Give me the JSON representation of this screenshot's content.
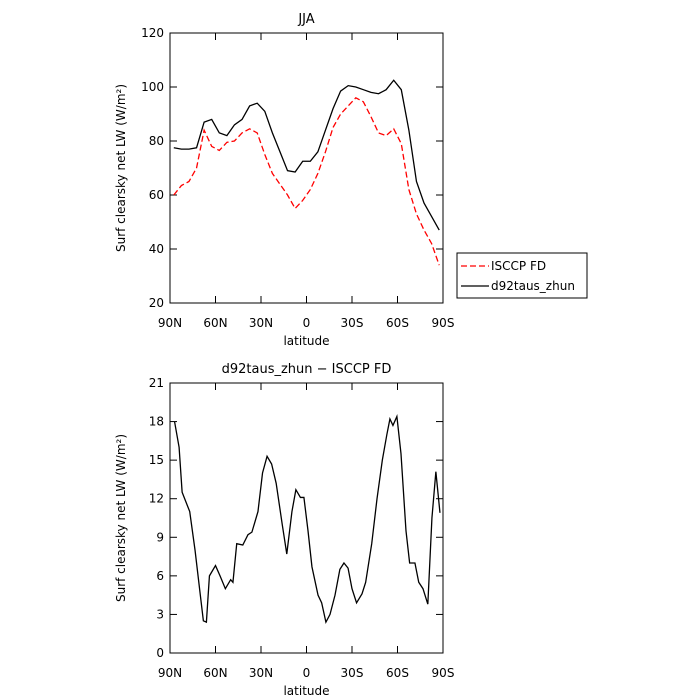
{
  "chart_data": [
    {
      "type": "line",
      "title": "JJA",
      "xlabel": "latitude",
      "ylabel": "Surf clearsky net LW (W/m²)",
      "xlim": [
        90,
        -90
      ],
      "xticks": [
        {
          "value": 90,
          "label": "90N"
        },
        {
          "value": 60,
          "label": "60N"
        },
        {
          "value": 30,
          "label": "30N"
        },
        0,
        {
          "value": -30,
          "label": "30S"
        },
        {
          "value": -60,
          "label": "60S"
        },
        {
          "value": -90,
          "label": "90S"
        }
      ],
      "ylim": [
        20,
        120
      ],
      "yticks": [
        20,
        40,
        60,
        80,
        100,
        120
      ],
      "legend": "right",
      "x": [
        87.5,
        82.5,
        77.5,
        72.5,
        67.5,
        62.5,
        57.5,
        52.5,
        47.5,
        42.5,
        37.5,
        32.5,
        27.5,
        22.5,
        17.5,
        12.5,
        7.5,
        2.5,
        -2.5,
        -7.5,
        -12.5,
        -17.5,
        -22.5,
        -27.5,
        -32.5,
        -37.5,
        -42.5,
        -47.5,
        -52.5,
        -57.5,
        -62.5,
        -67.5,
        -72.5,
        -77.5,
        -82.5,
        -87.5
      ],
      "series": [
        {
          "name": "ISCCP FD",
          "color": "#ff0000",
          "linestyle": "dashed",
          "values": [
            60,
            63.5,
            65,
            70,
            84,
            78,
            76.5,
            79.5,
            80,
            83,
            84.5,
            83,
            75,
            68,
            64,
            60,
            55,
            58,
            62,
            68,
            76,
            85,
            90,
            93,
            96,
            94.5,
            89,
            83,
            82,
            84.5,
            79,
            62,
            53,
            47,
            42,
            34
          ]
        },
        {
          "name": "d92taus_zhun",
          "color": "#000000",
          "linestyle": "solid",
          "values": [
            77.5,
            77,
            77,
            77.5,
            87,
            88,
            83,
            82,
            86,
            88,
            93,
            94,
            91,
            83,
            76,
            69,
            68.5,
            72.5,
            72.5,
            76,
            84,
            92,
            98.5,
            100.5,
            100,
            99,
            98,
            97.5,
            99,
            102.5,
            99,
            84,
            65,
            57,
            52,
            47
          ]
        }
      ]
    },
    {
      "type": "line",
      "title": "d92taus_zhun − ISCCP FD",
      "xlabel": "latitude",
      "ylabel": "Surf clearsky net LW (W/m²)",
      "xlim": [
        90,
        -90
      ],
      "xticks": [
        {
          "value": 90,
          "label": "90N"
        },
        {
          "value": 60,
          "label": "60N"
        },
        {
          "value": 30,
          "label": "30N"
        },
        0,
        {
          "value": -30,
          "label": "30S"
        },
        {
          "value": -60,
          "label": "60S"
        },
        {
          "value": -90,
          "label": "90S"
        }
      ],
      "ylim": [
        0,
        21
      ],
      "yticks": [
        0,
        3,
        6,
        9,
        12,
        15,
        18,
        21
      ],
      "x": [
        87,
        84,
        82,
        77,
        73.5,
        70,
        68,
        66,
        64,
        60,
        57,
        53.5,
        50,
        48.5,
        46,
        42,
        38.6,
        36,
        32,
        29,
        26,
        23,
        20,
        16,
        13,
        9.6,
        7,
        4,
        1.7,
        -1,
        -3.6,
        -7.6,
        -10,
        -12.8,
        -15.5,
        -18.8,
        -22,
        -24.7,
        -27.4,
        -30,
        -33,
        -36.6,
        -39,
        -43,
        -46.5,
        -50,
        -53,
        -55,
        -57,
        -59.6,
        -62.3,
        -65.6,
        -68,
        -71.5,
        -74,
        -76.8,
        -80,
        -82.7,
        -85.3,
        -88
      ],
      "color": "#000000",
      "values": [
        18,
        16,
        12.5,
        11,
        8,
        4.5,
        2.5,
        2.4,
        6,
        6.8,
        6,
        5,
        5.7,
        5.5,
        8.5,
        8.4,
        9.2,
        9.4,
        11,
        14,
        15.3,
        14.7,
        13.2,
        10,
        7.7,
        11,
        12.7,
        12.1,
        12.1,
        9.5,
        6.7,
        4.5,
        3.9,
        2.4,
        3,
        4.5,
        6.5,
        7,
        6.6,
        5,
        3.9,
        4.6,
        5.5,
        8.5,
        12,
        15,
        17,
        18.2,
        17.7,
        18.4,
        15.5,
        9.5,
        7,
        7,
        5.5,
        5,
        3.8,
        10.5,
        14.1,
        10.9
      ]
    }
  ]
}
